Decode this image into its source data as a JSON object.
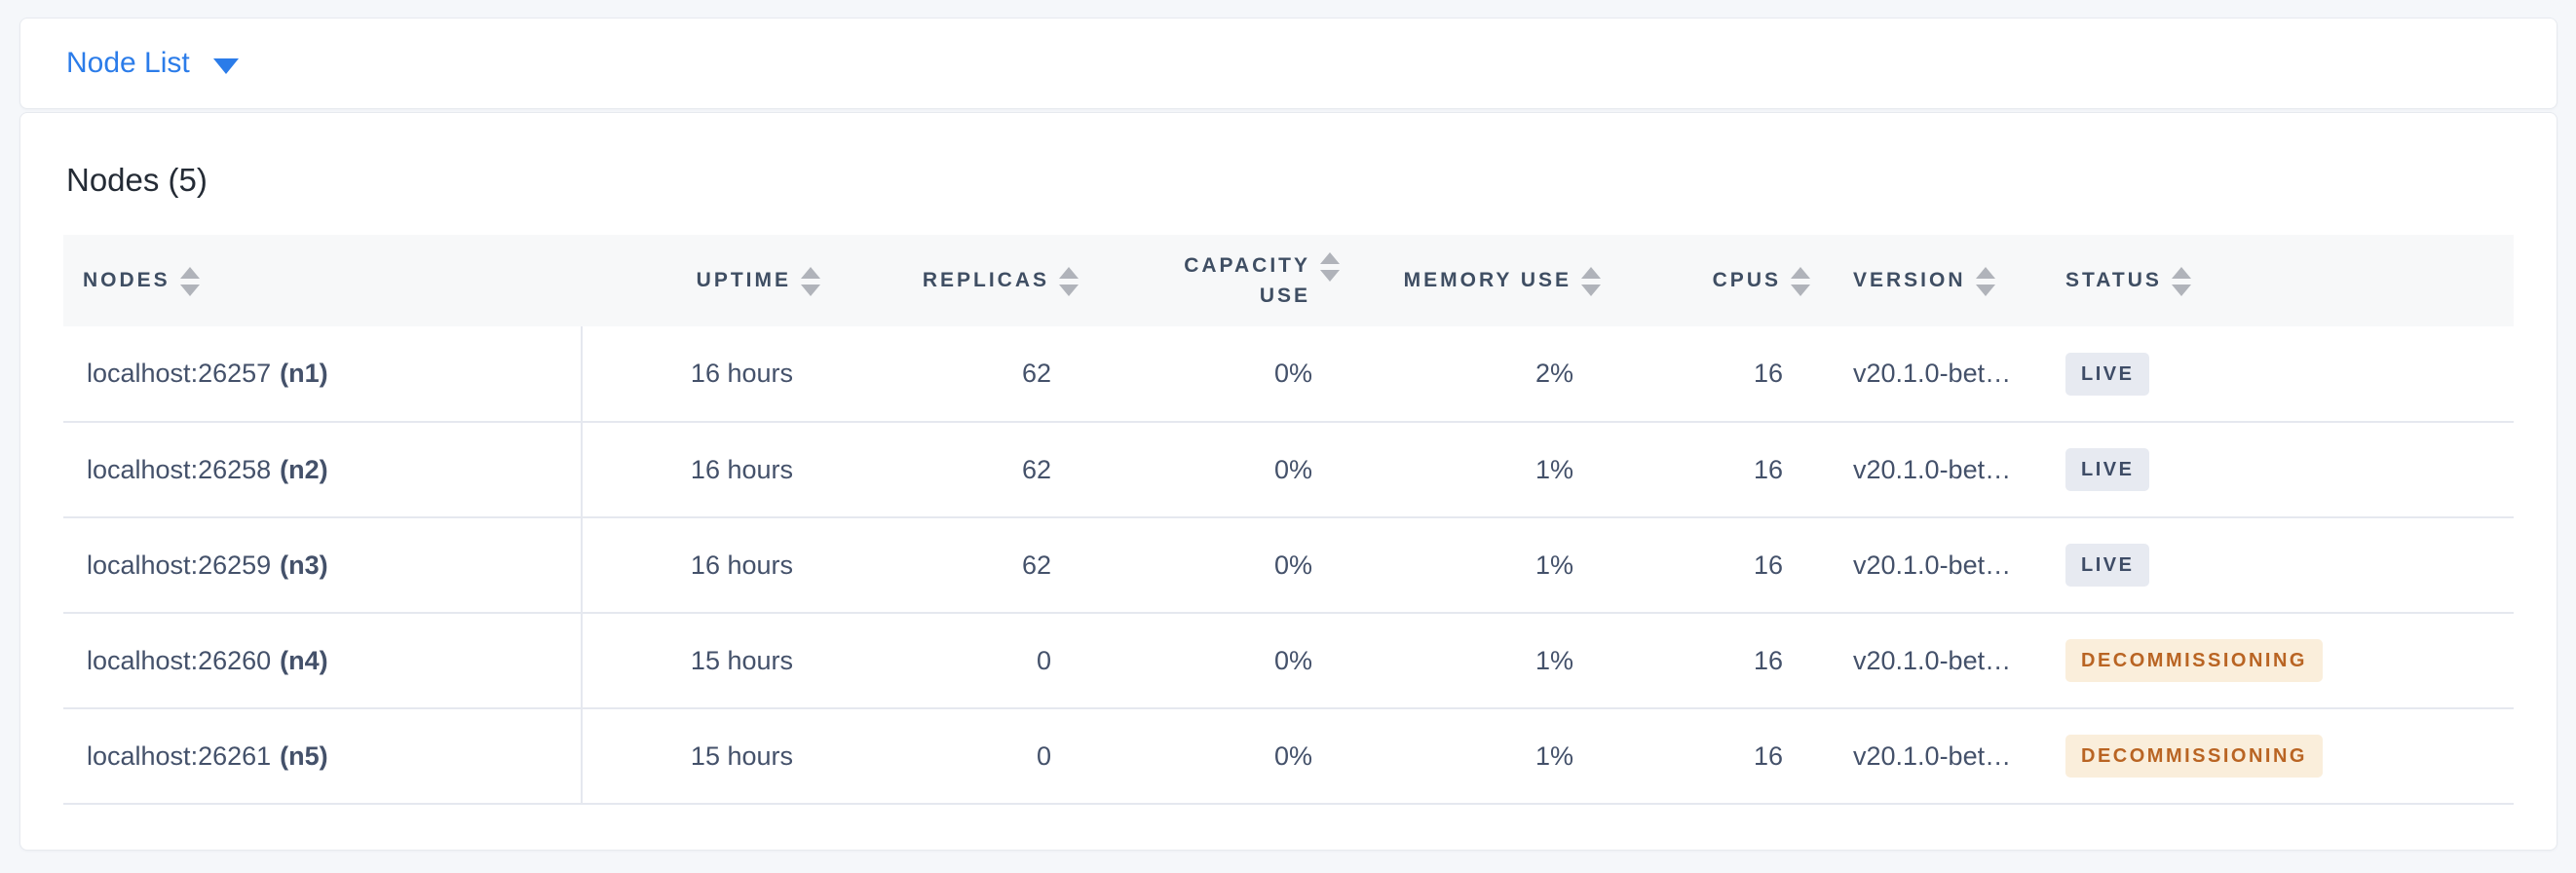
{
  "view_dropdown": {
    "label": "Node List",
    "icon": "caret-down-icon"
  },
  "section": {
    "title": "Nodes (5)"
  },
  "table": {
    "columns": [
      {
        "label": "NODES"
      },
      {
        "label": "UPTIME"
      },
      {
        "label": "REPLICAS"
      },
      {
        "label": "CAPACITY USE"
      },
      {
        "label": "MEMORY USE"
      },
      {
        "label": "CPUS"
      },
      {
        "label": "VERSION"
      },
      {
        "label": "STATUS"
      }
    ],
    "rows": [
      {
        "node": "localhost:26257",
        "id": "(n1)",
        "uptime": "16 hours",
        "replicas": "62",
        "capacity": "0%",
        "memory": "2%",
        "cpus": "16",
        "version": "v20.1.0-bet…",
        "status": "LIVE",
        "status_type": "live"
      },
      {
        "node": "localhost:26258",
        "id": "(n2)",
        "uptime": "16 hours",
        "replicas": "62",
        "capacity": "0%",
        "memory": "1%",
        "cpus": "16",
        "version": "v20.1.0-bet…",
        "status": "LIVE",
        "status_type": "live"
      },
      {
        "node": "localhost:26259",
        "id": "(n3)",
        "uptime": "16 hours",
        "replicas": "62",
        "capacity": "0%",
        "memory": "1%",
        "cpus": "16",
        "version": "v20.1.0-bet…",
        "status": "LIVE",
        "status_type": "live"
      },
      {
        "node": "localhost:26260",
        "id": "(n4)",
        "uptime": "15 hours",
        "replicas": "0",
        "capacity": "0%",
        "memory": "1%",
        "cpus": "16",
        "version": "v20.1.0-bet…",
        "status": "DECOMMISSIONING",
        "status_type": "decommissioning"
      },
      {
        "node": "localhost:26261",
        "id": "(n5)",
        "uptime": "15 hours",
        "replicas": "0",
        "capacity": "0%",
        "memory": "1%",
        "cpus": "16",
        "version": "v20.1.0-bet…",
        "status": "DECOMMISSIONING",
        "status_type": "decommissioning"
      }
    ]
  },
  "colors": {
    "page_bg": "#f5f7fa",
    "accent_blue": "#2b7ce9",
    "header_text": "#3f4e63",
    "cell_text": "#44516a",
    "live_bg": "#e7eaf1",
    "live_text": "#3e4c66",
    "decommissioning_bg": "#faeedb",
    "decommissioning_text": "#b96423"
  }
}
